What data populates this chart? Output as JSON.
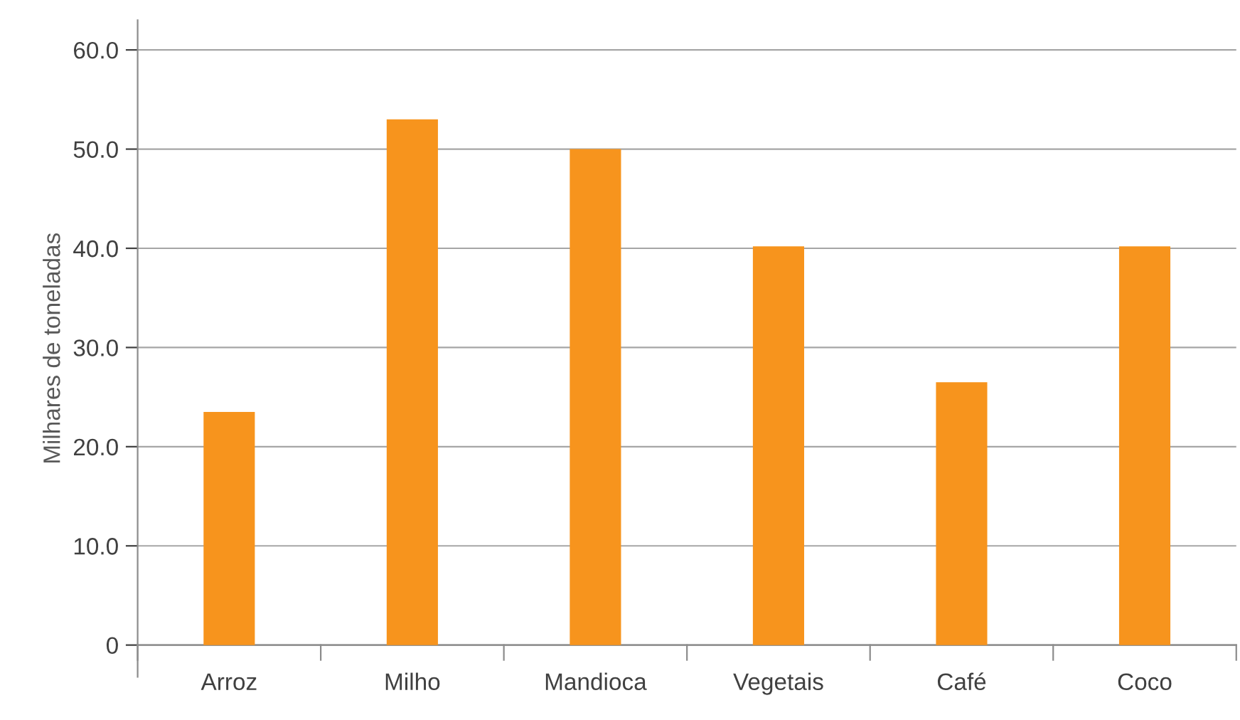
{
  "chart_data": {
    "type": "bar",
    "ylabel": "Milhares de toneladas",
    "categories": [
      "Arroz",
      "Milho",
      "Mandioca",
      "Vegetais",
      "Café",
      "Coco"
    ],
    "values": [
      23.5,
      53.0,
      50.0,
      40.2,
      26.5,
      40.2
    ],
    "color": "#f7941d",
    "ylim": [
      -3.2,
      63
    ],
    "yticks": [
      {
        "value": 0,
        "label": "0"
      },
      {
        "value": 10,
        "label": "10.0"
      },
      {
        "value": 20,
        "label": "20.0"
      },
      {
        "value": 30,
        "label": "30.0"
      },
      {
        "value": 40,
        "label": "40.0"
      },
      {
        "value": 50,
        "label": "50.0"
      },
      {
        "value": 60,
        "label": "60.0"
      }
    ],
    "grid": "y",
    "legend": false
  }
}
